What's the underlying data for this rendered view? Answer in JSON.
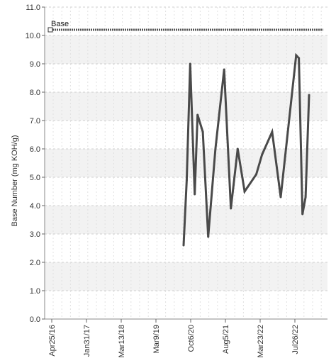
{
  "chart_data": {
    "type": "line",
    "title": "",
    "xlabel": "",
    "ylabel": "Base Number (mg KOH/g)",
    "ylim": [
      0.0,
      11.0
    ],
    "yticks": [
      "0.0",
      "1.0",
      "2.0",
      "3.0",
      "4.0",
      "5.0",
      "6.0",
      "7.0",
      "8.0",
      "9.0",
      "10.0",
      "11.0"
    ],
    "xlim": [
      "2016-04-25",
      "2023-07-01"
    ],
    "xticks": [
      {
        "label": "Apr25/16",
        "date": "2016-04-25"
      },
      {
        "label": "Jan31/17",
        "date": "2017-01-31"
      },
      {
        "label": "Mar13/18",
        "date": "2018-03-13"
      },
      {
        "label": "Mar9/19",
        "date": "2019-03-09"
      },
      {
        "label": "Oct6/20",
        "date": "2020-10-06"
      },
      {
        "label": "Aug5/21",
        "date": "2021-08-05"
      },
      {
        "label": "Mar23/22",
        "date": "2022-03-23"
      },
      {
        "label": "Jul26/22",
        "date": "2022-07-26"
      }
    ],
    "grid": true,
    "banded_background": true,
    "series": [
      {
        "name": "",
        "color": "#4a4a4a",
        "points": [
          {
            "x": "2020-06-10",
            "y": 2.6
          },
          {
            "x": "2020-08-01",
            "y": 4.9
          },
          {
            "x": "2020-09-28",
            "y": 9.0
          },
          {
            "x": "2020-11-10",
            "y": 4.4
          },
          {
            "x": "2020-12-05",
            "y": 7.2
          },
          {
            "x": "2021-01-20",
            "y": 6.6
          },
          {
            "x": "2021-03-08",
            "y": 2.9
          },
          {
            "x": "2021-05-10",
            "y": 6.0
          },
          {
            "x": "2021-07-25",
            "y": 8.8
          },
          {
            "x": "2021-09-10",
            "y": 3.9
          },
          {
            "x": "2021-10-25",
            "y": 6.0
          },
          {
            "x": "2021-12-10",
            "y": 4.5
          },
          {
            "x": "2022-02-25",
            "y": 5.1
          },
          {
            "x": "2022-03-30",
            "y": 5.8
          },
          {
            "x": "2022-05-05",
            "y": 6.6
          },
          {
            "x": "2022-06-05",
            "y": 4.3
          },
          {
            "x": "2022-08-10",
            "y": 9.3
          },
          {
            "x": "2022-09-12",
            "y": 9.2
          },
          {
            "x": "2022-10-25",
            "y": 3.7
          },
          {
            "x": "2022-12-01",
            "y": 4.3
          },
          {
            "x": "2023-01-12",
            "y": 7.9
          }
        ]
      }
    ],
    "reference_line": {
      "label": "Base",
      "value": 10.2,
      "color": "#555555",
      "style": "dotted"
    }
  }
}
